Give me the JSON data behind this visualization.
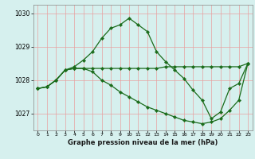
{
  "title": "Graphe pression niveau de la mer (hPa)",
  "bg_color": "#d6f0ee",
  "grid_color_v": "#e8a0a0",
  "grid_color_h": "#e8a0a0",
  "line_color": "#1a6b1a",
  "xlim": [
    -0.5,
    23.5
  ],
  "ylim": [
    1026.5,
    1030.25
  ],
  "yticks": [
    1027,
    1028,
    1029,
    1030
  ],
  "xticks": [
    0,
    1,
    2,
    3,
    4,
    5,
    6,
    7,
    8,
    9,
    10,
    11,
    12,
    13,
    14,
    15,
    16,
    17,
    18,
    19,
    20,
    21,
    22,
    23
  ],
  "line1_x": [
    0,
    1,
    2,
    3,
    4,
    5,
    6,
    7,
    8,
    9,
    10,
    11,
    12,
    13,
    14,
    15,
    16,
    17,
    18,
    19,
    20,
    21,
    22,
    23
  ],
  "line1_y": [
    1027.75,
    1027.8,
    1028.0,
    1028.3,
    1028.4,
    1028.6,
    1028.85,
    1029.25,
    1029.55,
    1029.65,
    1029.85,
    1029.65,
    1029.45,
    1028.85,
    1028.55,
    1028.3,
    1028.05,
    1027.7,
    1027.4,
    1026.85,
    1027.05,
    1027.75,
    1027.9,
    1028.5
  ],
  "line2_x": [
    0,
    1,
    2,
    3,
    4,
    5,
    6,
    7,
    8,
    9,
    10,
    11,
    12,
    13,
    14,
    15,
    16,
    17,
    18,
    19,
    20,
    21,
    22,
    23
  ],
  "line2_y": [
    1027.75,
    1027.8,
    1028.0,
    1028.3,
    1028.35,
    1028.35,
    1028.35,
    1028.35,
    1028.35,
    1028.35,
    1028.35,
    1028.35,
    1028.35,
    1028.35,
    1028.4,
    1028.4,
    1028.4,
    1028.4,
    1028.4,
    1028.4,
    1028.4,
    1028.4,
    1028.4,
    1028.5
  ],
  "line3_x": [
    0,
    1,
    2,
    3,
    4,
    5,
    6,
    7,
    8,
    9,
    10,
    11,
    12,
    13,
    14,
    15,
    16,
    17,
    18,
    19,
    20,
    21,
    22,
    23
  ],
  "line3_y": [
    1027.75,
    1027.8,
    1028.0,
    1028.3,
    1028.35,
    1028.35,
    1028.25,
    1028.0,
    1027.85,
    1027.65,
    1027.5,
    1027.35,
    1027.2,
    1027.1,
    1027.0,
    1026.9,
    1026.8,
    1026.75,
    1026.7,
    1026.75,
    1026.85,
    1027.1,
    1027.4,
    1028.5
  ]
}
